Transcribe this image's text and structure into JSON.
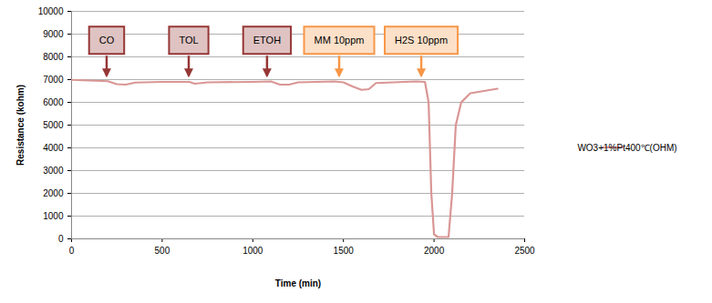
{
  "chart_data": {
    "type": "line",
    "x_label": "Time (min)",
    "y_label": "Resistance (kohm)",
    "xlim": [
      0,
      2500
    ],
    "xticks": [
      0,
      500,
      1000,
      1500,
      2000,
      2500
    ],
    "ylim": [
      0,
      10000
    ],
    "yticks": [
      0,
      1000,
      2000,
      3000,
      4000,
      5000,
      6000,
      7000,
      8000,
      9000,
      10000
    ],
    "grid": true,
    "legend": "right",
    "series": [
      {
        "name": "WO3+1%Pt400℃(OHM)",
        "color": "#d99694",
        "x": [
          0,
          100,
          200,
          250,
          300,
          350,
          500,
          650,
          680,
          750,
          1000,
          1100,
          1150,
          1200,
          1250,
          1450,
          1500,
          1550,
          1600,
          1640,
          1680,
          1900,
          1950,
          1970,
          1985,
          2000,
          2020,
          2080,
          2100,
          2120,
          2150,
          2200,
          2350
        ],
        "values": [
          6990,
          6960,
          6930,
          6800,
          6780,
          6870,
          6900,
          6900,
          6820,
          6880,
          6900,
          6920,
          6780,
          6780,
          6880,
          6920,
          6880,
          6700,
          6550,
          6580,
          6850,
          6920,
          6900,
          6000,
          2000,
          200,
          80,
          80,
          2000,
          5000,
          6000,
          6400,
          6600
        ]
      }
    ],
    "annotations": [
      {
        "text": "CO",
        "x": 196,
        "y": 7150,
        "color": "#953735"
      },
      {
        "text": "TOL",
        "x": 649,
        "y": 7150,
        "color": "#953735"
      },
      {
        "text": "ETOH",
        "x": 1081,
        "y": 7150,
        "color": "#953735"
      },
      {
        "text": "MM 10ppm",
        "x": 1479,
        "y": 7150,
        "color": "#f79646"
      },
      {
        "text": "H2S 10ppm",
        "x": 1932,
        "y": 7150,
        "color": "#f79646"
      }
    ]
  }
}
